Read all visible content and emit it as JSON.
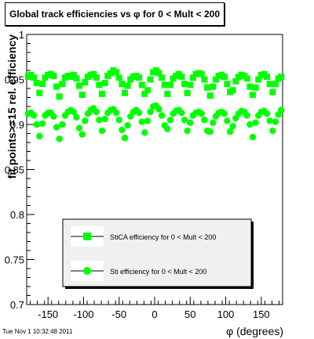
{
  "title": "Global track efficiencies vs φ for 0 < Mult < 200",
  "footer_timestamp": "Tue Nov  1 10:32:48 2011",
  "colors": {
    "series": "#00ff00",
    "axis": "#000000",
    "background": "#ffffff"
  },
  "chart_data": {
    "type": "scatter",
    "xlabel": "φ (degrees)",
    "ylabel": "fit points>=15 rel. efficiency",
    "xlim": [
      -180,
      180
    ],
    "ylim": [
      0.7,
      1.0
    ],
    "xticks": [
      -150,
      -100,
      -50,
      0,
      50,
      100,
      150
    ],
    "yticks": [
      0.7,
      0.75,
      0.8,
      0.85,
      0.9,
      0.95,
      1
    ],
    "ytick_labels": [
      "0.7",
      "0.75",
      "0.8",
      "0.85",
      "0.9",
      "0.95",
      "1"
    ],
    "grid": false,
    "legend_position": "bottom-right",
    "series": [
      {
        "name": "StiCA efficiency  for 0 < Mult < 200",
        "marker": "square",
        "color": "#00ff00",
        "x": [
          -178,
          -174,
          -170,
          -166,
          -162,
          -158,
          -154,
          -150,
          -146,
          -142,
          -138,
          -134,
          -130,
          -126,
          -122,
          -118,
          -114,
          -110,
          -106,
          -102,
          -98,
          -94,
          -90,
          -86,
          -82,
          -78,
          -74,
          -70,
          -66,
          -62,
          -58,
          -54,
          -50,
          -46,
          -42,
          -38,
          -34,
          -30,
          -26,
          -22,
          -18,
          -14,
          -10,
          -6,
          -2,
          2,
          6,
          10,
          14,
          18,
          22,
          26,
          30,
          34,
          38,
          42,
          46,
          50,
          54,
          58,
          62,
          66,
          70,
          74,
          78,
          82,
          86,
          90,
          94,
          98,
          102,
          106,
          110,
          114,
          118,
          122,
          126,
          130,
          134,
          138,
          142,
          146,
          150,
          154,
          158,
          162,
          166,
          170,
          174,
          178
        ],
        "y": [
          0.953,
          0.955,
          0.952,
          0.946,
          0.935,
          0.945,
          0.952,
          0.955,
          0.956,
          0.954,
          0.942,
          0.931,
          0.945,
          0.952,
          0.954,
          0.953,
          0.955,
          0.951,
          0.943,
          0.933,
          0.947,
          0.953,
          0.955,
          0.956,
          0.952,
          0.944,
          0.934,
          0.946,
          0.954,
          0.957,
          0.96,
          0.958,
          0.952,
          0.945,
          0.935,
          0.943,
          0.95,
          0.953,
          0.954,
          0.952,
          0.944,
          0.934,
          0.938,
          0.95,
          0.958,
          0.96,
          0.957,
          0.952,
          0.944,
          0.934,
          0.944,
          0.951,
          0.954,
          0.956,
          0.953,
          0.945,
          0.935,
          0.944,
          0.952,
          0.956,
          0.957,
          0.956,
          0.95,
          0.941,
          0.932,
          0.942,
          0.95,
          0.954,
          0.955,
          0.953,
          0.945,
          0.936,
          0.938,
          0.948,
          0.953,
          0.955,
          0.954,
          0.951,
          0.942,
          0.933,
          0.941,
          0.95,
          0.955,
          0.956,
          0.953,
          0.945,
          0.936,
          0.945,
          0.951,
          0.953
        ]
      },
      {
        "name": "Sti efficiency  for 0 < Mult < 200",
        "marker": "circle",
        "color": "#00ff00",
        "x": [
          -178,
          -174,
          -170,
          -166,
          -162,
          -158,
          -154,
          -150,
          -146,
          -142,
          -138,
          -134,
          -130,
          -126,
          -122,
          -118,
          -114,
          -110,
          -106,
          -102,
          -98,
          -94,
          -90,
          -86,
          -82,
          -78,
          -74,
          -70,
          -66,
          -62,
          -58,
          -54,
          -50,
          -46,
          -42,
          -38,
          -34,
          -30,
          -26,
          -22,
          -18,
          -14,
          -10,
          -6,
          -2,
          2,
          6,
          10,
          14,
          18,
          22,
          26,
          30,
          34,
          38,
          42,
          46,
          50,
          54,
          58,
          62,
          66,
          70,
          74,
          78,
          82,
          86,
          90,
          94,
          98,
          102,
          106,
          110,
          114,
          118,
          122,
          126,
          130,
          134,
          138,
          142,
          146,
          150,
          154,
          158,
          162,
          166,
          170,
          174,
          178
        ],
        "y": [
          0.912,
          0.913,
          0.91,
          0.9,
          0.887,
          0.901,
          0.91,
          0.913,
          0.913,
          0.909,
          0.897,
          0.884,
          0.9,
          0.91,
          0.914,
          0.916,
          0.914,
          0.908,
          0.896,
          0.889,
          0.904,
          0.912,
          0.916,
          0.918,
          0.914,
          0.905,
          0.893,
          0.906,
          0.913,
          0.916,
          0.917,
          0.913,
          0.905,
          0.894,
          0.885,
          0.899,
          0.909,
          0.914,
          0.916,
          0.913,
          0.903,
          0.891,
          0.904,
          0.914,
          0.92,
          0.921,
          0.917,
          0.91,
          0.899,
          0.895,
          0.905,
          0.912,
          0.915,
          0.916,
          0.913,
          0.905,
          0.893,
          0.902,
          0.91,
          0.913,
          0.914,
          0.912,
          0.905,
          0.893,
          0.892,
          0.902,
          0.909,
          0.913,
          0.914,
          0.912,
          0.904,
          0.892,
          0.898,
          0.907,
          0.912,
          0.915,
          0.914,
          0.91,
          0.9,
          0.886,
          0.902,
          0.91,
          0.914,
          0.915,
          0.912,
          0.904,
          0.893,
          0.903,
          0.911,
          0.916
        ]
      }
    ]
  }
}
